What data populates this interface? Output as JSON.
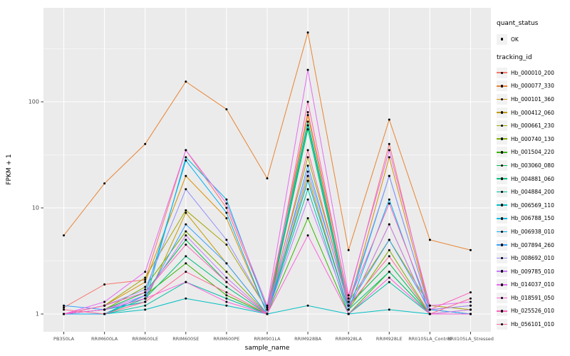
{
  "chart_data": {
    "type": "line",
    "title": "",
    "xlabel": "sample_name",
    "ylabel": "FPKM + 1",
    "x_scale": "categorical",
    "y_scale": "log10",
    "ylim": [
      1,
      600
    ],
    "y_ticks": [
      1,
      10,
      100
    ],
    "grid": true,
    "panel_background": "#EBEBEB",
    "grid_color": "#FFFFFF",
    "point_color": "#000000",
    "point_shape": "circle",
    "legend_position": "right",
    "categories": [
      "PB350LA",
      "RRIM600LA",
      "RRIM600LE",
      "RRIM600SE",
      "RRIM600PE",
      "RRIM901LA",
      "RRIM928BA",
      "RRIM928LA",
      "RRIM928LE",
      "RRII105LA_Control",
      "RRII105LA_Stressed"
    ],
    "legend": {
      "quant_status_title": "quant_status",
      "quant_status_items": [
        "OK"
      ],
      "tracking_id_title": "tracking_id"
    },
    "series": [
      {
        "name": "Hb_000010_200",
        "color": "#F8766D",
        "values": [
          1.15,
          1.9,
          2.1,
          35,
          10,
          1.15,
          80,
          1.4,
          40,
          1.1,
          1.2
        ]
      },
      {
        "name": "Hb_000077_330",
        "color": "#EA8331",
        "values": [
          5.5,
          17,
          40,
          155,
          85,
          19,
          450,
          4,
          68,
          5,
          4
        ]
      },
      {
        "name": "Hb_000101_360",
        "color": "#D89000",
        "values": [
          1,
          1.2,
          2,
          20,
          8,
          1,
          75,
          1.2,
          30,
          1.1,
          1
        ]
      },
      {
        "name": "Hb_000412_060",
        "color": "#C09B00",
        "values": [
          1,
          1.1,
          1.3,
          9,
          3,
          1,
          20,
          1.1,
          7,
          1,
          1.1
        ]
      },
      {
        "name": "Hb_000661_230",
        "color": "#A3A500",
        "values": [
          1,
          1.2,
          2.2,
          9.5,
          4.5,
          1.1,
          30,
          1.3,
          5,
          1.2,
          1.1
        ]
      },
      {
        "name": "Hb_000740_130",
        "color": "#7CAE00",
        "values": [
          1,
          1.1,
          1.8,
          6,
          2.5,
          1,
          18,
          1.1,
          4,
          1,
          1
        ]
      },
      {
        "name": "Hb_001504_220",
        "color": "#39B600",
        "values": [
          1,
          1,
          1.5,
          3,
          1.5,
          1,
          8,
          1,
          2.5,
          1,
          1
        ]
      },
      {
        "name": "Hb_003060_080",
        "color": "#00BB4E",
        "values": [
          1,
          1.1,
          1.6,
          5,
          2,
          1,
          60,
          1.2,
          3,
          1,
          1
        ]
      },
      {
        "name": "Hb_004881_060",
        "color": "#00BF7D",
        "values": [
          1,
          1,
          1.4,
          3.5,
          1.8,
          1,
          55,
          1.1,
          2.5,
          1,
          1
        ]
      },
      {
        "name": "Hb_004884_200",
        "color": "#00C1A3",
        "values": [
          1,
          1,
          1.2,
          2,
          1.4,
          1,
          15,
          1,
          2,
          1,
          1
        ]
      },
      {
        "name": "Hb_006569_110",
        "color": "#00BFC4",
        "values": [
          1,
          1,
          1.1,
          1.4,
          1.2,
          1,
          1.2,
          1,
          1.1,
          1,
          1
        ]
      },
      {
        "name": "Hb_006788_150",
        "color": "#00BAE0",
        "values": [
          1,
          1.1,
          1.3,
          30,
          12,
          1.1,
          65,
          1.2,
          20,
          1.1,
          1
        ]
      },
      {
        "name": "Hb_006938_010",
        "color": "#00B0F6",
        "values": [
          1,
          1,
          1.5,
          28,
          9,
          1,
          18,
          1.1,
          12,
          1,
          1
        ]
      },
      {
        "name": "Hb_007894_260",
        "color": "#35A2FF",
        "values": [
          1.2,
          1.1,
          1.4,
          7,
          3,
          1,
          25,
          1.2,
          5,
          1.1,
          1
        ]
      },
      {
        "name": "Hb_008692_010",
        "color": "#9590FF",
        "values": [
          1,
          1.2,
          1.7,
          15,
          5,
          1.1,
          22,
          1.3,
          20,
          1.1,
          1.2
        ]
      },
      {
        "name": "Hb_009785_010",
        "color": "#C77CFF",
        "values": [
          1,
          1.1,
          1.5,
          5.5,
          2.2,
          1,
          12,
          1.1,
          7,
          1,
          1.1
        ]
      },
      {
        "name": "Hb_014037_010",
        "color": "#E76BF3",
        "values": [
          1,
          1.3,
          2.5,
          35,
          11,
          1.2,
          200,
          1.5,
          35,
          1.2,
          1.3
        ]
      },
      {
        "name": "Hb_018591_050",
        "color": "#FA62DB",
        "values": [
          1,
          1.1,
          1.4,
          2,
          1.3,
          1,
          5.5,
          1,
          2.2,
          1,
          1
        ]
      },
      {
        "name": "Hb_025526_010",
        "color": "#FF62BC",
        "values": [
          1,
          1.2,
          1.6,
          4.5,
          2,
          1,
          100,
          1.3,
          11,
          1.1,
          1.6
        ]
      },
      {
        "name": "Hb_056101_010",
        "color": "#FF6A98",
        "values": [
          1.1,
          1,
          1.3,
          2.5,
          1.6,
          1,
          35,
          1.2,
          3.5,
          1,
          1.4
        ]
      }
    ]
  }
}
